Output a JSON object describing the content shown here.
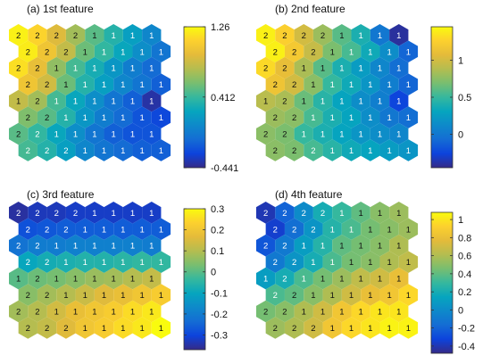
{
  "chart_data": [
    {
      "type": "heatmap",
      "title": "(a) 1st feature",
      "colorbar": {
        "min": -0.441,
        "max": 1.26,
        "ticks": [
          1.26,
          0.412,
          -0.441
        ]
      },
      "values": [
        [
          1.22,
          1.1,
          0.9,
          0.7,
          0.5,
          0.35,
          0.2,
          0.05
        ],
        [
          1.2,
          1.0,
          0.8,
          0.55,
          0.4,
          0.25,
          0.1,
          -0.05
        ],
        [
          1.15,
          0.95,
          0.65,
          0.45,
          0.3,
          0.15,
          0.0,
          -0.1
        ],
        [
          1.0,
          0.85,
          0.55,
          0.35,
          0.2,
          0.05,
          -0.05,
          -0.15
        ],
        [
          0.8,
          0.7,
          0.45,
          0.25,
          0.1,
          -0.05,
          -0.15,
          -0.38
        ],
        [
          0.6,
          0.5,
          0.35,
          0.15,
          0.0,
          -0.1,
          -0.2,
          -0.25
        ],
        [
          0.5,
          0.4,
          0.25,
          0.1,
          -0.05,
          -0.15,
          -0.2,
          -0.2
        ],
        [
          0.45,
          0.35,
          0.2,
          0.05,
          -0.05,
          -0.1,
          -0.15,
          -0.15
        ]
      ],
      "labels": [
        [
          "2",
          "2",
          "2",
          "2",
          "1",
          "1",
          "1",
          "1"
        ],
        [
          "2",
          "2",
          "2",
          "1",
          "1",
          "1",
          "1",
          "1"
        ],
        [
          "2",
          "2",
          "1",
          "1",
          "1",
          "1",
          "1",
          "1"
        ],
        [
          "2",
          "2",
          "1",
          "1",
          "1",
          "1",
          "1",
          "1"
        ],
        [
          "1",
          "2",
          "1",
          "1",
          "1",
          "1",
          "1",
          "1"
        ],
        [
          "2",
          "2",
          "1",
          "1",
          "1",
          "1",
          "1",
          "1"
        ],
        [
          "2",
          "2",
          "1",
          "1",
          "1",
          "1",
          "1",
          "1"
        ],
        [
          "2",
          "2",
          "2",
          "1",
          "1",
          "1",
          "1",
          "1"
        ]
      ]
    },
    {
      "type": "heatmap",
      "title": "(b) 2nd feature",
      "colorbar": {
        "min": -0.45,
        "max": 1.45,
        "ticks": [
          1,
          0.5,
          0
        ]
      },
      "values": [
        [
          1.4,
          1.25,
          1.0,
          0.8,
          0.6,
          0.4,
          0.0,
          -0.4
        ],
        [
          1.4,
          1.2,
          0.95,
          0.7,
          0.55,
          0.35,
          0.15,
          -0.1
        ],
        [
          1.3,
          1.1,
          0.85,
          0.6,
          0.4,
          0.25,
          0.1,
          -0.05
        ],
        [
          1.15,
          1.0,
          0.75,
          0.5,
          0.35,
          0.2,
          0.05,
          -0.1
        ],
        [
          0.9,
          0.85,
          0.65,
          0.45,
          0.3,
          0.15,
          0.05,
          -0.25
        ],
        [
          0.8,
          0.75,
          0.55,
          0.4,
          0.3,
          0.15,
          0.0,
          -0.05
        ],
        [
          0.75,
          0.7,
          0.5,
          0.4,
          0.3,
          0.2,
          0.15,
          0.1
        ],
        [
          0.75,
          0.7,
          0.55,
          0.45,
          0.35,
          0.3,
          0.25,
          0.2
        ]
      ],
      "labels": [
        [
          "2",
          "2",
          "2",
          "2",
          "1",
          "1",
          "1",
          "1"
        ],
        [
          "2",
          "2",
          "2",
          "1",
          "1",
          "1",
          "1",
          "1"
        ],
        [
          "2",
          "2",
          "1",
          "1",
          "1",
          "1",
          "1",
          "1"
        ],
        [
          "2",
          "2",
          "1",
          "1",
          "1",
          "1",
          "1",
          "1"
        ],
        [
          "1",
          "2",
          "1",
          "1",
          "1",
          "1",
          "1",
          "1"
        ],
        [
          "2",
          "2",
          "1",
          "1",
          "1",
          "1",
          "1",
          "1"
        ],
        [
          "2",
          "2",
          "1",
          "1",
          "1",
          "1",
          "1",
          "1"
        ],
        [
          "2",
          "2",
          "2",
          "1",
          "1",
          "1",
          "1",
          "1"
        ]
      ]
    },
    {
      "type": "heatmap",
      "title": "(c) 3rd feature",
      "colorbar": {
        "min": -0.37,
        "max": 0.3,
        "ticks": [
          0.3,
          0.2,
          0.1,
          0,
          -0.1,
          -0.2,
          -0.3
        ]
      },
      "values": [
        [
          -0.35,
          -0.33,
          -0.33,
          -0.32,
          -0.32,
          -0.32,
          -0.32,
          -0.32
        ],
        [
          -0.28,
          -0.27,
          -0.26,
          -0.26,
          -0.26,
          -0.26,
          -0.26,
          -0.26
        ],
        [
          -0.22,
          -0.2,
          -0.2,
          -0.19,
          -0.19,
          -0.19,
          -0.19,
          -0.2
        ],
        [
          -0.1,
          -0.08,
          -0.07,
          -0.06,
          -0.06,
          -0.05,
          -0.04,
          -0.04
        ],
        [
          0.0,
          0.02,
          0.03,
          0.05,
          0.07,
          0.08,
          0.1,
          0.12
        ],
        [
          0.05,
          0.08,
          0.1,
          0.13,
          0.16,
          0.18,
          0.2,
          0.22
        ],
        [
          0.08,
          0.1,
          0.14,
          0.18,
          0.2,
          0.22,
          0.25,
          0.27
        ],
        [
          0.1,
          0.12,
          0.16,
          0.2,
          0.22,
          0.25,
          0.27,
          0.3
        ]
      ],
      "labels": [
        [
          "2",
          "2",
          "2",
          "2",
          "1",
          "1",
          "1",
          "1"
        ],
        [
          "2",
          "2",
          "2",
          "1",
          "1",
          "1",
          "1",
          "1"
        ],
        [
          "2",
          "2",
          "1",
          "1",
          "1",
          "1",
          "1",
          "1"
        ],
        [
          "2",
          "2",
          "1",
          "1",
          "1",
          "1",
          "1",
          "1"
        ],
        [
          "1",
          "2",
          "1",
          "1",
          "1",
          "1",
          "1",
          "1"
        ],
        [
          "2",
          "2",
          "1",
          "1",
          "1",
          "1",
          "1",
          "1"
        ],
        [
          "2",
          "2",
          "1",
          "1",
          "1",
          "1",
          "1",
          "1"
        ],
        [
          "2",
          "2",
          "2",
          "1",
          "1",
          "1",
          "1",
          "1"
        ]
      ]
    },
    {
      "type": "heatmap",
      "title": "(d) 4th feature",
      "colorbar": {
        "min": -0.48,
        "max": 1.08,
        "ticks": [
          1,
          0.8,
          0.6,
          0.4,
          0.2,
          0,
          -0.2,
          -0.4
        ]
      },
      "values": [
        [
          -0.4,
          -0.2,
          0.0,
          0.2,
          0.3,
          0.4,
          0.5,
          0.55
        ],
        [
          -0.35,
          -0.15,
          0.05,
          0.25,
          0.35,
          0.45,
          0.5,
          0.55
        ],
        [
          -0.25,
          -0.1,
          0.1,
          0.25,
          0.4,
          0.45,
          0.5,
          0.6
        ],
        [
          -0.1,
          0.05,
          0.2,
          0.35,
          0.45,
          0.5,
          0.6,
          0.65
        ],
        [
          0.1,
          0.2,
          0.35,
          0.45,
          0.55,
          0.65,
          0.7,
          0.8
        ],
        [
          0.35,
          0.4,
          0.5,
          0.6,
          0.7,
          0.8,
          0.85,
          0.95
        ],
        [
          0.45,
          0.5,
          0.6,
          0.7,
          0.85,
          0.95,
          1.0,
          1.0
        ],
        [
          0.55,
          0.6,
          0.7,
          0.85,
          0.95,
          1.0,
          1.05,
          1.05
        ]
      ],
      "labels": [
        [
          "2",
          "2",
          "2",
          "2",
          "1",
          "1",
          "1",
          "1"
        ],
        [
          "2",
          "2",
          "2",
          "1",
          "1",
          "1",
          "1",
          "1"
        ],
        [
          "2",
          "2",
          "1",
          "1",
          "1",
          "1",
          "1",
          "1"
        ],
        [
          "2",
          "2",
          "1",
          "1",
          "1",
          "1",
          "1",
          "1"
        ],
        [
          "1",
          "2",
          "1",
          "1",
          "1",
          "1",
          "1",
          "1"
        ],
        [
          "2",
          "2",
          "1",
          "1",
          "1",
          "1",
          "1",
          "1"
        ],
        [
          "2",
          "2",
          "1",
          "1",
          "1",
          "1",
          "1",
          "1"
        ],
        [
          "2",
          "2",
          "2",
          "1",
          "1",
          "1",
          "1",
          "1"
        ]
      ]
    }
  ]
}
